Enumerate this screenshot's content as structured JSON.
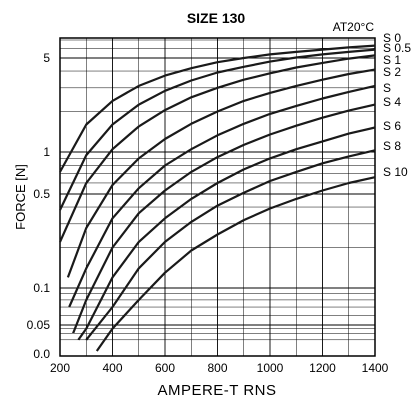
{
  "chart_data": {
    "type": "line",
    "title": "SIZE 130",
    "annotation": "AT20°C",
    "xlabel": "AMPERE-T  RNS",
    "ylabel": "FORCE [N]",
    "x_scale": "linear",
    "y_scale": "log",
    "xlim": [
      200,
      1400
    ],
    "ylim": [
      0.0,
      7.0
    ],
    "grid": true,
    "x_ticks": [
      {
        "value": 200,
        "label": "200"
      },
      {
        "value": 400,
        "label": "400"
      },
      {
        "value": 600,
        "label": "600"
      },
      {
        "value": 800,
        "label": "800"
      },
      {
        "value": 1000,
        "label": "1000"
      },
      {
        "value": 1200,
        "label": "1200"
      },
      {
        "value": 1400,
        "label": "1400"
      }
    ],
    "y_ticks": [
      {
        "value": 5,
        "label": "5"
      },
      {
        "value": 1,
        "label": "1"
      },
      {
        "value": 0.5,
        "label": "0.5"
      },
      {
        "value": 0.1,
        "label": "0.1"
      },
      {
        "value": 0.05,
        "label": "0.05"
      },
      {
        "value": 0.0,
        "label": "0.0"
      }
    ],
    "series": [
      {
        "name": "S  0",
        "x": [
          200,
          300,
          400,
          500,
          600,
          700,
          800,
          900,
          1000,
          1100,
          1200,
          1300,
          1400
        ],
        "y": [
          0.72,
          1.6,
          2.4,
          3.1,
          3.7,
          4.2,
          4.65,
          5.0,
          5.35,
          5.6,
          5.85,
          6.1,
          6.3
        ]
      },
      {
        "name": "S 0.5",
        "x": [
          200,
          300,
          400,
          500,
          600,
          700,
          800,
          900,
          1000,
          1100,
          1200,
          1300,
          1400
        ],
        "y": [
          0.38,
          0.95,
          1.6,
          2.25,
          2.85,
          3.4,
          3.9,
          4.3,
          4.7,
          5.05,
          5.35,
          5.6,
          5.85
        ]
      },
      {
        "name": "S  1",
        "x": [
          200,
          300,
          400,
          500,
          600,
          700,
          800,
          900,
          1000,
          1100,
          1200,
          1300,
          1400
        ],
        "y": [
          0.22,
          0.6,
          1.05,
          1.55,
          2.05,
          2.55,
          3.0,
          3.45,
          3.85,
          4.25,
          4.6,
          4.95,
          5.25
        ]
      },
      {
        "name": "S  2",
        "x": [
          230,
          300,
          400,
          500,
          600,
          700,
          800,
          900,
          1000,
          1100,
          1200,
          1300,
          1400
        ],
        "y": [
          0.12,
          0.28,
          0.58,
          0.9,
          1.25,
          1.62,
          2.0,
          2.4,
          2.75,
          3.1,
          3.45,
          3.8,
          4.1
        ]
      },
      {
        "name": "S",
        "x": [
          235,
          300,
          400,
          500,
          600,
          700,
          800,
          900,
          1000,
          1100,
          1200,
          1300,
          1400
        ],
        "y": [
          0.07,
          0.14,
          0.33,
          0.55,
          0.8,
          1.05,
          1.33,
          1.62,
          1.92,
          2.2,
          2.5,
          2.8,
          3.1
        ]
      },
      {
        "name": "S  4",
        "x": [
          250,
          300,
          400,
          500,
          600,
          700,
          800,
          900,
          1000,
          1100,
          1200,
          1300,
          1400
        ],
        "y": [
          0.03,
          0.08,
          0.2,
          0.36,
          0.53,
          0.72,
          0.92,
          1.13,
          1.35,
          1.57,
          1.8,
          2.03,
          2.25
        ]
      },
      {
        "name": "S  6",
        "x": [
          270,
          300,
          400,
          500,
          600,
          700,
          800,
          900,
          1000,
          1100,
          1200,
          1300,
          1400
        ],
        "y": [
          0.02,
          0.04,
          0.12,
          0.22,
          0.33,
          0.46,
          0.6,
          0.75,
          0.9,
          1.05,
          1.2,
          1.37,
          1.52
        ]
      },
      {
        "name": "S  8",
        "x": [
          300,
          400,
          500,
          600,
          700,
          800,
          900,
          1000,
          1100,
          1200,
          1300,
          1400
        ],
        "y": [
          0.02,
          0.07,
          0.14,
          0.22,
          0.31,
          0.41,
          0.51,
          0.62,
          0.72,
          0.83,
          0.93,
          1.03
        ]
      },
      {
        "name": "S  10",
        "x": [
          340,
          400,
          500,
          600,
          700,
          800,
          900,
          1000,
          1100,
          1200,
          1300,
          1400
        ],
        "y": [
          0.01,
          0.04,
          0.08,
          0.13,
          0.19,
          0.25,
          0.32,
          0.39,
          0.46,
          0.53,
          0.6,
          0.66
        ]
      }
    ],
    "colors": {
      "line": "#1a1a1a",
      "grid": "#000000",
      "background": "#ffffff"
    }
  }
}
